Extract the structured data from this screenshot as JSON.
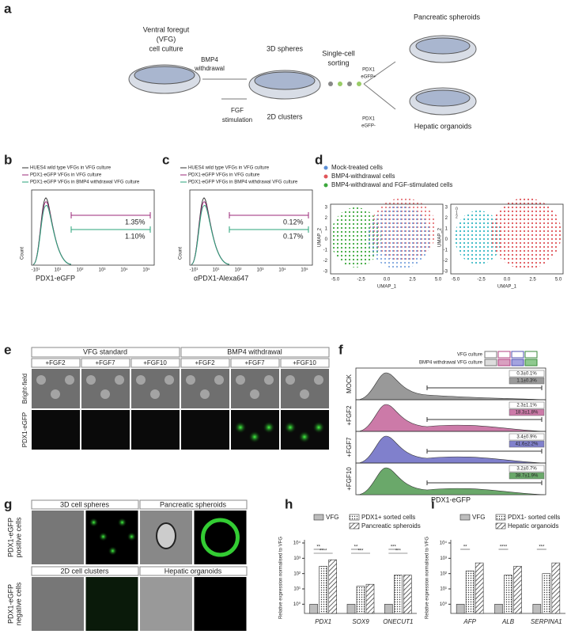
{
  "panel_a": {
    "letter": "a",
    "vfg": [
      "Ventral foregut",
      "(VFG)",
      "cell culture"
    ],
    "bmp4": [
      "BMP4",
      "withdrawal"
    ],
    "fgf": [
      "FGF",
      "stimulation"
    ],
    "spheres": "3D spheres",
    "clusters": "2D clusters",
    "sorting": [
      "Single-cell",
      "sorting"
    ],
    "pos": [
      "PDX1",
      "eGFP+"
    ],
    "neg": [
      "PDX1",
      "eGFP-"
    ],
    "pancreatic": "Pancreatic spheroids",
    "hepatic": "Hepatic organoids"
  },
  "panel_b": {
    "letter": "b",
    "legend": [
      "HUES4 wild type VFGs in VFG culture",
      "PDX1-eGFP VFGs in VFG culture",
      "PDX1-eGFP VFGs in BMP4 withdrawal VFG culture"
    ],
    "ylabel": "Count",
    "gates": [
      "1.35%",
      "1.10%"
    ],
    "xticks": [
      "-10¹",
      "10¹",
      "10²",
      "10³",
      "10⁴",
      "10⁵"
    ],
    "xlabel": "PDX1-eGFP"
  },
  "panel_c": {
    "letter": "c",
    "legend": [
      "HUES4 wild type VFGs in VFG culture",
      "PDX1-eGFP VFGs in VFG culture",
      "PDX1-eGFP VFGs in BMP4 withdrawal VFG culture"
    ],
    "ylabel": "Count",
    "gates": [
      "0.12%",
      "0.17%"
    ],
    "xticks": [
      "-10¹",
      "10¹",
      "10²",
      "10³",
      "10⁴",
      "10⁵"
    ],
    "xlabel": "αPDX1-Alexa647"
  },
  "panel_d": {
    "letter": "d",
    "legend": [
      "Mock-treated cells",
      "BMP4-withdrawal cells",
      "BMP4-withdrawal and FGF-stimulated cells"
    ],
    "xticks": [
      "-5.0",
      "-2.5",
      "0.0",
      "2.5",
      "5.0"
    ],
    "yticks": [
      "3",
      "2",
      "1",
      "0",
      "-1",
      "-2",
      "-3"
    ],
    "xlabel": "UMAP_1",
    "ylabel": "UMAP_2",
    "cluster_key": [
      "0",
      "1",
      "2"
    ]
  },
  "panel_e": {
    "letter": "e",
    "groups": [
      "VFG standard",
      "BMP4 withdrawal"
    ],
    "columns": [
      "+FGF2",
      "+FGF7",
      "+FGF10",
      "+FGF2",
      "+FGF7",
      "+FGF10"
    ],
    "rows": [
      "Bright-field",
      "PDX1-eGFP"
    ]
  },
  "panel_f": {
    "letter": "f",
    "legend": [
      "VFG culture",
      "BMP4 withdrawal VFG culture"
    ],
    "rows": [
      "MOCK",
      "+FGF2",
      "+FGF7",
      "+FGF10"
    ],
    "gates": [
      [
        "0.3±0.1%",
        "1.1±0.3%"
      ],
      [
        "2.3±1.1%",
        "18.3±1.8%"
      ],
      [
        "3.4±0.9%",
        "41.6±2.2%"
      ],
      [
        "3.2±0.7%",
        "38.7±1.9%"
      ]
    ],
    "xlabel": "PDX1-eGFP"
  },
  "panel_g": {
    "letter": "g",
    "headers": [
      "3D cell spheres",
      "Pancreatic spheroids",
      "2D cell clusters",
      "Hepatic organoids"
    ],
    "rows": [
      [
        "PDX1-eGFP",
        "positive cells"
      ],
      [
        "PDX1-eGFP",
        "negative cells"
      ]
    ]
  },
  "panel_h": {
    "letter": "h",
    "ylabel": "Relative expression normalised to VFG",
    "log": true,
    "ylim": [
      0.25,
      10000
    ],
    "yticks": [
      {
        "value": 1,
        "label": "10⁰"
      },
      {
        "value": 10,
        "label": "10¹"
      },
      {
        "value": 100,
        "label": "10²"
      },
      {
        "value": 1000,
        "label": "10³"
      },
      {
        "value": 10000,
        "label": "10⁴"
      }
    ],
    "categories": [
      "PDX1",
      "SOX9",
      "ONECUT1"
    ],
    "series": [
      {
        "name": "VFG",
        "style": "solid",
        "values": [
          1,
          1,
          1
        ]
      },
      {
        "name": "PDX1+ sorted cells",
        "style": "dots",
        "values": [
          300,
          15,
          80
        ]
      },
      {
        "name": "Pancreatic spheroids",
        "style": "hatch",
        "values": [
          800,
          20,
          80
        ]
      }
    ],
    "significance": [
      [
        "**",
        "****"
      ],
      [
        "**",
        "***"
      ],
      [
        "***",
        "***"
      ]
    ]
  },
  "panel_i": {
    "letter": "i",
    "ylabel": "Relative expression normalised to VFG",
    "log": true,
    "ylim": [
      0.25,
      10000
    ],
    "yticks": [
      {
        "value": 1,
        "label": "10⁰"
      },
      {
        "value": 10,
        "label": "10¹"
      },
      {
        "value": 100,
        "label": "10²"
      },
      {
        "value": 1000,
        "label": "10³"
      },
      {
        "value": 10000,
        "label": "10⁴"
      }
    ],
    "categories": [
      "AFP",
      "ALB",
      "SERPINA1"
    ],
    "series": [
      {
        "name": "VFG",
        "style": "solid",
        "values": [
          1,
          1,
          1
        ]
      },
      {
        "name": "PDX1- sorted cells",
        "style": "dots",
        "values": [
          150,
          80,
          100
        ]
      },
      {
        "name": "Hepatic organoids",
        "style": "hatch",
        "values": [
          500,
          300,
          500
        ]
      }
    ],
    "significance": [
      [
        "**"
      ],
      [
        "****"
      ],
      [
        "***"
      ]
    ]
  }
}
